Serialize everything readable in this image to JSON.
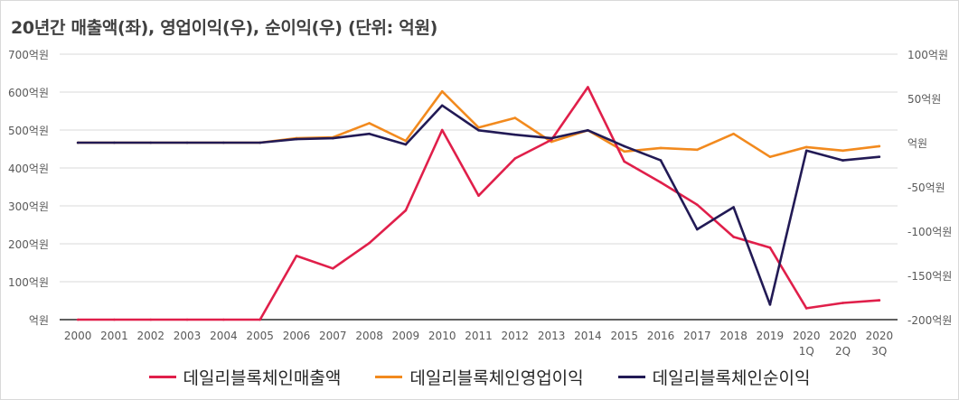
{
  "title": "20년간 매출액(좌), 영업이익(우), 순이익(우) (단위: 억원)",
  "colors": {
    "revenue": "#e01f4a",
    "operating": "#f28a1e",
    "net": "#221a55",
    "grid": "#d9d9d9",
    "text": "#595959"
  },
  "chart_data": {
    "type": "line",
    "title": "20년간 매출액(좌), 영업이익(우), 순이익(우) (단위: 억원)",
    "categories": [
      "2000",
      "2001",
      "2002",
      "2003",
      "2004",
      "2005",
      "2006",
      "2007",
      "2008",
      "2009",
      "2010",
      "2011",
      "2012",
      "2013",
      "2014",
      "2015",
      "2016",
      "2017",
      "2018",
      "2019",
      "2020\n1Q",
      "2020\n2Q",
      "2020\n3Q"
    ],
    "left_axis": {
      "ylim": [
        0,
        700
      ],
      "ticks": [
        0,
        100,
        200,
        300,
        400,
        500,
        600,
        700
      ],
      "tick_labels": [
        "억원",
        "100억원",
        "200억원",
        "300억원",
        "400억원",
        "500억원",
        "600억원",
        "700억원"
      ]
    },
    "right_axis": {
      "ylim": [
        -200,
        100
      ],
      "ticks": [
        -200,
        -150,
        -100,
        -50,
        0,
        50,
        100
      ],
      "tick_labels": [
        "-200억원",
        "-150억원",
        "-100억원",
        "-50억원",
        "억원",
        "50억원",
        "100억원"
      ]
    },
    "series": [
      {
        "name": "데일리블록체인매출액",
        "axis": "left",
        "color": "#e01f4a",
        "values": [
          0,
          0,
          0,
          0,
          0,
          0,
          168,
          135,
          202,
          288,
          500,
          327,
          425,
          474,
          613,
          417,
          362,
          303,
          218,
          190,
          30,
          44,
          51
        ]
      },
      {
        "name": "데일리블록체인영업이익",
        "axis": "right",
        "color": "#f28a1e",
        "values": [
          0,
          0,
          0,
          0,
          0,
          0,
          5,
          6,
          22,
          2,
          58,
          17,
          28,
          1,
          14,
          -10,
          -6,
          -8,
          10,
          -16,
          -5,
          -9,
          -4
        ]
      },
      {
        "name": "데일리블록체인순이익",
        "axis": "right",
        "color": "#221a55",
        "values": [
          0,
          0,
          0,
          0,
          0,
          0,
          4,
          5,
          10,
          -2,
          42,
          14,
          9,
          5,
          14,
          -4,
          -20,
          -98,
          -73,
          -183,
          -9,
          -20,
          -16
        ]
      }
    ],
    "grid": true,
    "legend_position": "bottom"
  }
}
